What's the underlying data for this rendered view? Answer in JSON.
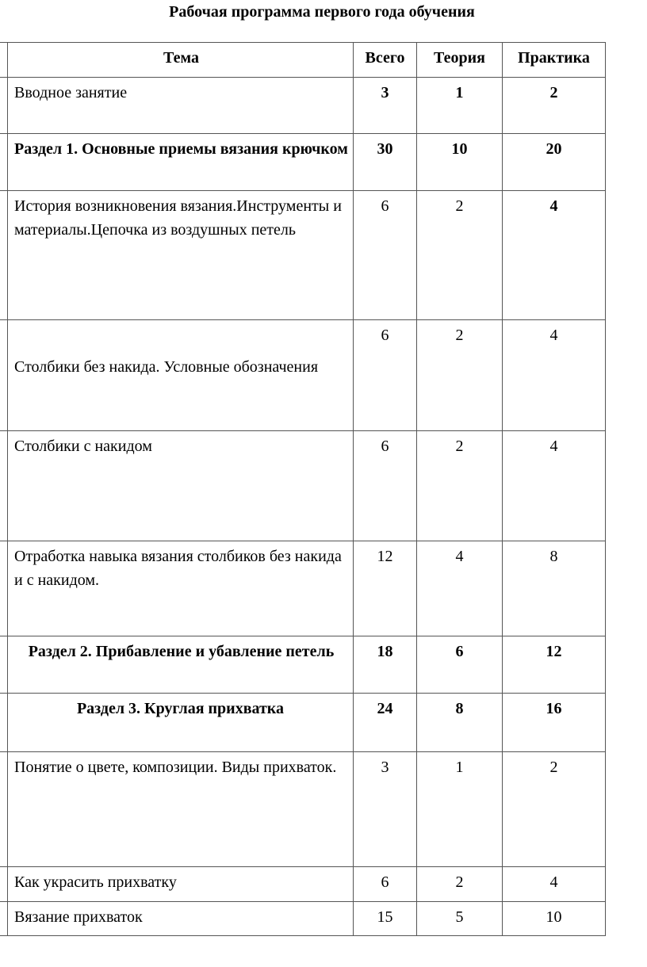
{
  "title": "Рабочая программа первого года обучения",
  "headers": {
    "topic": "Тема",
    "total": "Всего",
    "theory": "Теория",
    "practice": "Практика"
  },
  "rows": [
    {
      "topic": "Вводное занятие",
      "total": "3",
      "theory": "1",
      "practice": "2"
    },
    {
      "topic": "Раздел 1.  Основные приемы вязания крючком",
      "total": "30",
      "theory": "10",
      "practice": "20"
    },
    {
      "topic": "История возникновения вязания.Инструменты и материалы.Цепочка из воздушных петель",
      "total": "6",
      "theory": "2",
      "practice": "4"
    },
    {
      "topic": "Столбики без накида. Условные обозначения",
      "total": "6",
      "theory": "2",
      "practice": "4"
    },
    {
      "topic": "Столбики с накидом",
      "total": "6",
      "theory": "2",
      "practice": "4"
    },
    {
      "topic": "Отработка навыка вязания столбиков без накида и с накидом.",
      "total": "12",
      "theory": "4",
      "practice": "8"
    },
    {
      "topic": "Раздел 2.  Прибавление и убавление петель",
      "total": "18",
      "theory": "6",
      "practice": "12"
    },
    {
      "topic": "Раздел 3.  Круглая прихватка",
      "total": "24",
      "theory": "8",
      "practice": "16"
    },
    {
      "topic": "Понятие о цвете, композиции. Виды прихваток.",
      "total": "3",
      "theory": "1",
      "practice": "2"
    },
    {
      "topic": "Как украсить прихватку",
      "total": "6",
      "theory": "2",
      "practice": "4"
    },
    {
      "topic": "Вязание прихваток",
      "total": "15",
      "theory": "5",
      "practice": "10"
    }
  ]
}
